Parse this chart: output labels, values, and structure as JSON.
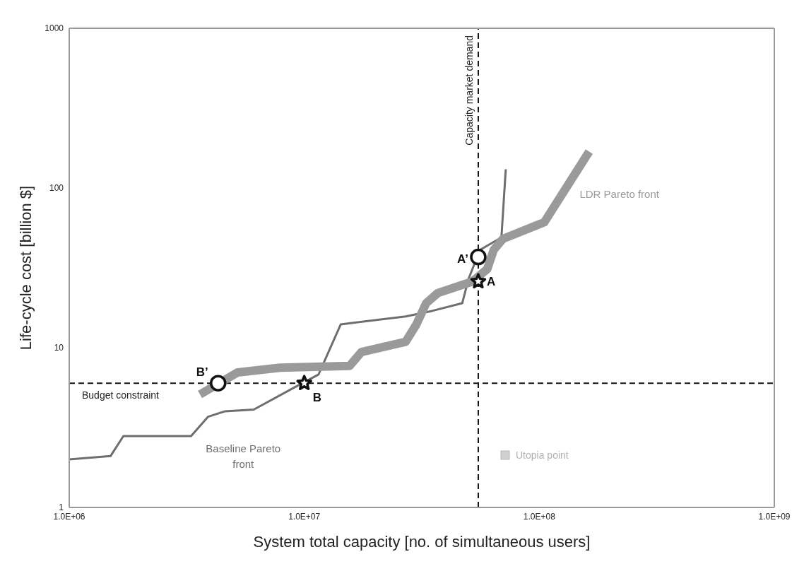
{
  "chart_data": {
    "type": "line",
    "xlabel": "System total capacity [no. of simultaneous users]",
    "ylabel": "Life-cycle cost [billion $]",
    "log": "xy",
    "grid": false,
    "marker": "none",
    "line_style": "solid",
    "xlim": [
      1000000,
      1000000000
    ],
    "xticks": [
      {
        "value": 1000000,
        "label": "1.0E+06"
      },
      {
        "value": 10000000,
        "label": "1.0E+07"
      },
      {
        "value": 100000000,
        "label": "1.0E+08"
      },
      {
        "value": 1000000000,
        "label": "1.0E+09"
      }
    ],
    "ylim": [
      1,
      1000
    ],
    "yticks": [
      1,
      10,
      100,
      1000
    ],
    "series": [
      {
        "name": "Baseline Pareto front",
        "color": "#6e6e6e",
        "x": [
          1000000,
          1500000,
          1700000,
          3300000,
          3900000,
          4600000,
          6100000,
          9000000,
          11500000,
          14300000,
          27000000,
          35000000,
          47000000,
          50000000,
          56000000,
          69000000,
          72000000
        ],
        "values": [
          2.0,
          2.1,
          2.8,
          2.8,
          3.7,
          4.0,
          4.1,
          5.6,
          6.8,
          14,
          15.7,
          17,
          19,
          27,
          41,
          49,
          131
        ]
      },
      {
        "name": "LDR Pareto front",
        "color": "#9a9a9a",
        "x": [
          3600000,
          4600000,
          5200000,
          7900000,
          15600000,
          17500000,
          27000000,
          30000000,
          33000000,
          37000000,
          52000000,
          60000000,
          64000000,
          70000000,
          105000000,
          163000000
        ],
        "values": [
          5.1,
          6.3,
          7.0,
          7.5,
          7.7,
          9.4,
          10.9,
          14,
          19,
          22,
          26,
          31,
          41,
          48,
          61,
          169
        ]
      },
      {
        "type": "scatter",
        "marker": "star",
        "color": "#111111",
        "x": [
          10000000,
          55000000
        ],
        "values": [
          6,
          26
        ]
      },
      {
        "type": "scatter",
        "marker": "circle",
        "color": "#111111",
        "x": [
          4300000,
          55000000
        ],
        "values": [
          6,
          37
        ]
      }
    ],
    "ref_lines": [
      {
        "axis": "x",
        "value": 55000000,
        "label": "Capacity market demand",
        "color": "#111111",
        "line_style": "dashed"
      },
      {
        "axis": "y",
        "value": 6,
        "label": "Budget constraint",
        "color": "#111111",
        "line_style": "dashed"
      }
    ],
    "annotations": [
      {
        "text": "A",
        "x": 55000000,
        "y": 26
      },
      {
        "text": "A’",
        "x": 55000000,
        "y": 37
      },
      {
        "text": "B",
        "x": 10000000,
        "y": 6
      },
      {
        "text": "B’",
        "x": 4300000,
        "y": 6
      },
      "Utopia point"
    ]
  }
}
